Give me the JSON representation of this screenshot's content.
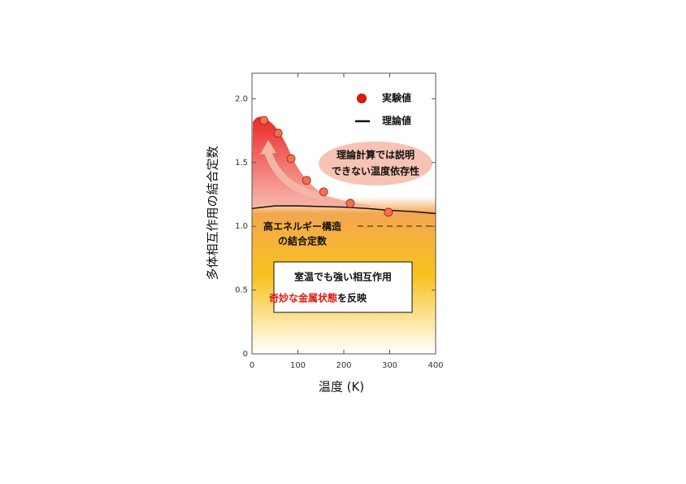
{
  "chart_data": {
    "type": "scatter",
    "xlabel": "温度 (K)",
    "ylabel": "多体相互作用の結合定数",
    "xlim": [
      0,
      400
    ],
    "xticks": [
      0,
      100,
      200,
      300,
      400
    ],
    "ylim": [
      0,
      2.2
    ],
    "yticks": [
      0,
      0.5,
      {
        "value": 1,
        "label": "1.0"
      },
      1.5,
      {
        "value": 2,
        "label": "2.0"
      }
    ],
    "series": [
      {
        "name": "実験値",
        "color": "#e8160c",
        "mode": "markers",
        "x": [
          26,
          57,
          85,
          119,
          156,
          214,
          297
        ],
        "values": [
          1.83,
          1.73,
          1.53,
          1.36,
          1.27,
          1.18,
          1.11
        ]
      },
      {
        "name": "理論値",
        "color": "#111111",
        "mode": "line",
        "x": [
          0,
          50,
          100,
          150,
          200,
          250,
          300,
          350,
          400
        ],
        "values": [
          1.14,
          1.16,
          1.16,
          1.155,
          1.15,
          1.14,
          1.125,
          1.115,
          1.1
        ]
      }
    ],
    "annotations": {
      "unexplained": [
        "理論計算では説明",
        "できない温度依存性"
      ],
      "high_energy": [
        "高エネルギー構造",
        "の結合定数"
      ],
      "box_line1": "室温でも強い相互作用",
      "box_line2_red": "奇妙な金属状態",
      "box_line2_rest": "を反映"
    }
  }
}
